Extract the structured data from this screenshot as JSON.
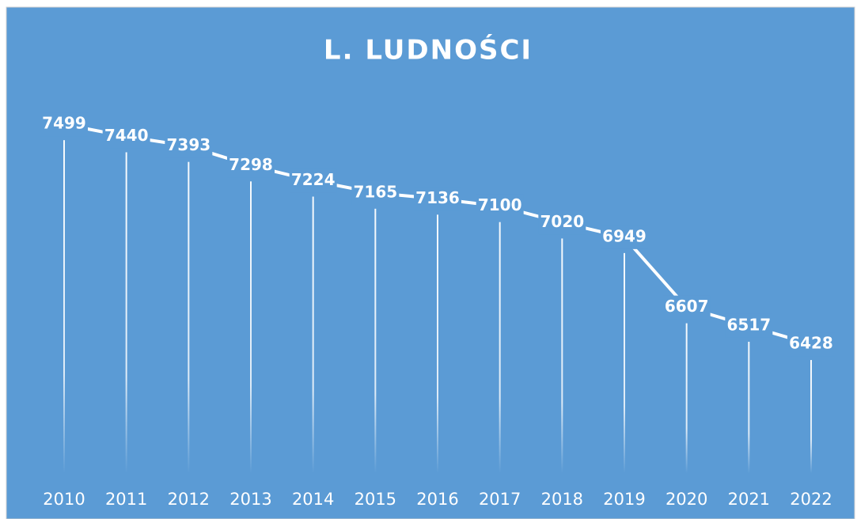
{
  "chart_data": {
    "type": "line",
    "title": "L. LUDNOŚCI",
    "categories": [
      "2010",
      "2011",
      "2012",
      "2013",
      "2014",
      "2015",
      "2016",
      "2017",
      "2018",
      "2019",
      "2020",
      "2021",
      "2022"
    ],
    "values": [
      7499,
      7440,
      7393,
      7298,
      7224,
      7165,
      7136,
      7100,
      7020,
      6949,
      6607,
      6517,
      6428
    ],
    "color": "#ffffff",
    "ylim": [
      5800,
      7700
    ]
  }
}
